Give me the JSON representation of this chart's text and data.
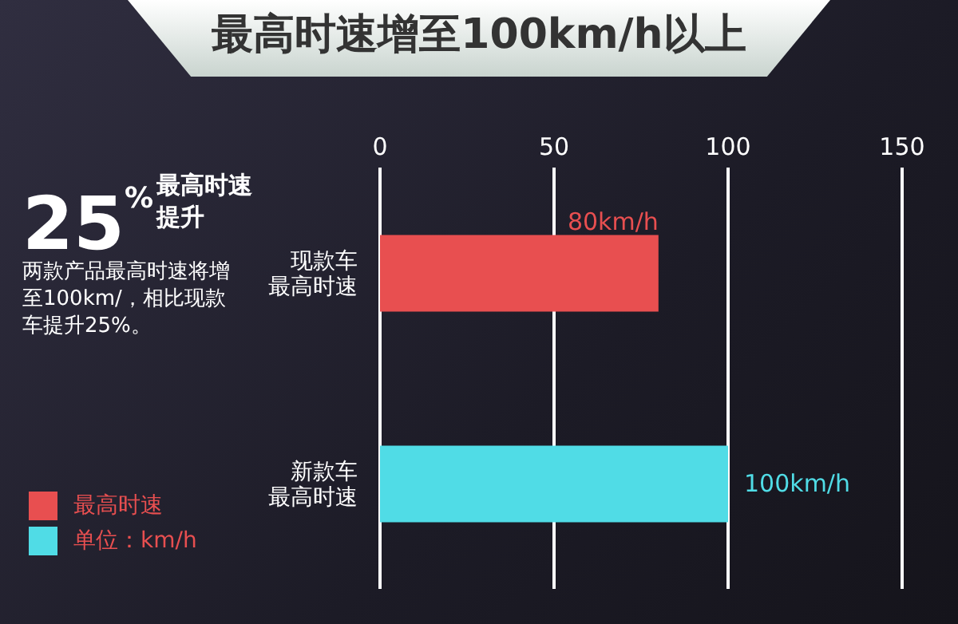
{
  "chart_data": {
    "type": "bar",
    "orientation": "horizontal",
    "stacked": true,
    "title": "最高时速增至100km/h以上",
    "annotations": [
      "25$^{%}$",
      "最高时速提升",
      "两款产品最高时速将增至100km/，相比现款车提升25%。"
    ],
    "categories": [
      "现款车最高时速",
      "新款车最高时速"
    ],
    "series": [
      {
        "name": "最高时速",
        "color": "#e84f50",
        "values": [
          80,
          null
        ],
        "value_labels": [
          "80km/h",
          null
        ]
      },
      {
        "name": "单位：km/h",
        "color": "#50dce6",
        "values": [
          null,
          100
        ],
        "value_labels": [
          null,
          "100km/h"
        ]
      }
    ],
    "xlim": [
      0,
      150
    ],
    "xticks": [
      0,
      50,
      100,
      150
    ],
    "grid": "x",
    "legend": "left"
  }
}
